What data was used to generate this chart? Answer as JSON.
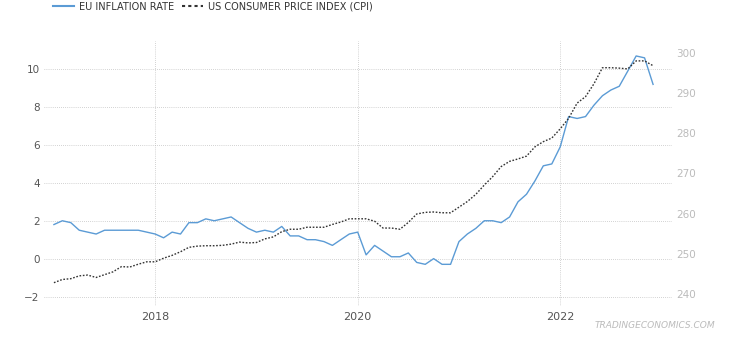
{
  "legend_eu": "EU INFLATION RATE",
  "legend_us": "US CONSUMER PRICE INDEX (CPI)",
  "watermark": "TRADINGECONOMICS.COM",
  "eu_color": "#5B9BD5",
  "us_color": "#333333",
  "background_color": "#ffffff",
  "grid_color": "#aaaaaa",
  "left_ylim": [
    -2.5,
    11.5
  ],
  "right_ylim": [
    237,
    303
  ],
  "left_yticks": [
    -2,
    0,
    2,
    4,
    6,
    8,
    10
  ],
  "right_yticks": [
    240,
    250,
    260,
    270,
    280,
    290,
    300
  ],
  "xtick_labels": [
    "2018",
    "2020",
    "2022"
  ],
  "xlim": [
    2016.9,
    2023.1
  ],
  "eu_dates": [
    2017.0,
    2017.083,
    2017.167,
    2017.25,
    2017.333,
    2017.417,
    2017.5,
    2017.583,
    2017.667,
    2017.75,
    2017.833,
    2017.917,
    2018.0,
    2018.083,
    2018.167,
    2018.25,
    2018.333,
    2018.417,
    2018.5,
    2018.583,
    2018.667,
    2018.75,
    2018.833,
    2018.917,
    2019.0,
    2019.083,
    2019.167,
    2019.25,
    2019.333,
    2019.417,
    2019.5,
    2019.583,
    2019.667,
    2019.75,
    2019.833,
    2019.917,
    2020.0,
    2020.083,
    2020.167,
    2020.25,
    2020.333,
    2020.417,
    2020.5,
    2020.583,
    2020.667,
    2020.75,
    2020.833,
    2020.917,
    2021.0,
    2021.083,
    2021.167,
    2021.25,
    2021.333,
    2021.417,
    2021.5,
    2021.583,
    2021.667,
    2021.75,
    2021.833,
    2021.917,
    2022.0,
    2022.083,
    2022.167,
    2022.25,
    2022.333,
    2022.417,
    2022.5,
    2022.583,
    2022.667,
    2022.75,
    2022.833,
    2022.917
  ],
  "eu_values": [
    1.8,
    2.0,
    1.9,
    1.5,
    1.4,
    1.3,
    1.5,
    1.5,
    1.5,
    1.5,
    1.5,
    1.4,
    1.3,
    1.1,
    1.4,
    1.3,
    1.9,
    1.9,
    2.1,
    2.0,
    2.1,
    2.2,
    1.9,
    1.6,
    1.4,
    1.5,
    1.4,
    1.7,
    1.2,
    1.2,
    1.0,
    1.0,
    0.9,
    0.7,
    1.0,
    1.3,
    1.4,
    0.2,
    0.7,
    0.4,
    0.1,
    0.1,
    0.3,
    -0.2,
    -0.3,
    0.0,
    -0.3,
    -0.3,
    0.9,
    1.3,
    1.6,
    2.0,
    2.0,
    1.9,
    2.2,
    3.0,
    3.4,
    4.1,
    4.9,
    5.0,
    5.9,
    7.5,
    7.4,
    7.5,
    8.1,
    8.6,
    8.9,
    9.1,
    9.9,
    10.7,
    10.6,
    9.2
  ],
  "us_dates": [
    2017.0,
    2017.083,
    2017.167,
    2017.25,
    2017.333,
    2017.417,
    2017.5,
    2017.583,
    2017.667,
    2017.75,
    2017.833,
    2017.917,
    2018.0,
    2018.083,
    2018.167,
    2018.25,
    2018.333,
    2018.417,
    2018.5,
    2018.583,
    2018.667,
    2018.75,
    2018.833,
    2018.917,
    2019.0,
    2019.083,
    2019.167,
    2019.25,
    2019.333,
    2019.417,
    2019.5,
    2019.583,
    2019.667,
    2019.75,
    2019.833,
    2019.917,
    2020.0,
    2020.083,
    2020.167,
    2020.25,
    2020.333,
    2020.417,
    2020.5,
    2020.583,
    2020.667,
    2020.75,
    2020.833,
    2020.917,
    2021.0,
    2021.083,
    2021.167,
    2021.25,
    2021.333,
    2021.417,
    2021.5,
    2021.583,
    2021.667,
    2021.75,
    2021.833,
    2021.917,
    2022.0,
    2022.083,
    2022.167,
    2022.25,
    2022.333,
    2022.417,
    2022.5,
    2022.583,
    2022.667,
    2022.75,
    2022.833,
    2022.917
  ],
  "us_values": [
    242.8,
    243.6,
    243.8,
    244.5,
    244.7,
    244.1,
    244.8,
    245.5,
    246.8,
    246.7,
    247.4,
    248.0,
    248.0,
    248.9,
    249.6,
    250.5,
    251.6,
    251.9,
    252.0,
    252.0,
    252.1,
    252.4,
    252.9,
    252.7,
    252.8,
    253.7,
    254.2,
    255.5,
    256.1,
    256.1,
    256.6,
    256.6,
    256.6,
    257.3,
    257.9,
    258.7,
    258.7,
    258.7,
    258.1,
    256.4,
    256.4,
    256.1,
    257.8,
    259.9,
    260.3,
    260.4,
    260.2,
    260.2,
    261.6,
    263.0,
    264.8,
    267.1,
    269.2,
    271.7,
    273.0,
    273.6,
    274.3,
    276.6,
    277.9,
    278.8,
    281.1,
    283.7,
    287.5,
    289.1,
    292.3,
    296.3,
    296.3,
    296.2,
    296.0,
    298.0,
    298.0,
    296.8
  ]
}
